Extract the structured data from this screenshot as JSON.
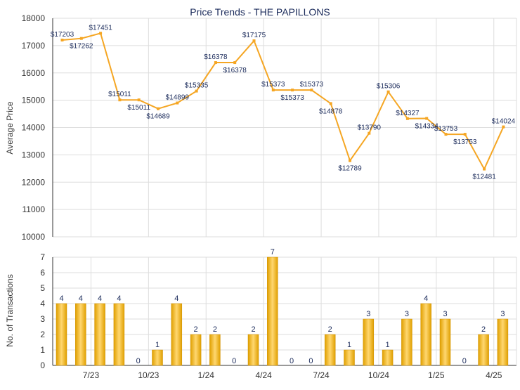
{
  "colors": {
    "line": "#f5a623",
    "bar_dark": "#e0a000",
    "bar_light": "#ffd770",
    "grid": "#dddddd",
    "axis": "#333333",
    "label": "#1a2a5a"
  },
  "chart_data": [
    {
      "type": "line",
      "title": "Price Trends - THE PAPILLONS",
      "ylabel": "Average Price",
      "ylim": [
        10000,
        18000
      ],
      "yticks": [
        "10000",
        "11000",
        "12000",
        "13000",
        "14000",
        "15000",
        "16000",
        "17000",
        "18000"
      ],
      "grid": true,
      "series": [
        {
          "values": [
            17203,
            17262,
            17451,
            15011,
            15011,
            14689,
            14899,
            15335,
            16378,
            16378,
            17175,
            15373,
            15373,
            15373,
            14878,
            12789,
            13790,
            15306,
            14327,
            14334,
            13753,
            13753,
            12481,
            14024
          ],
          "point_labels": [
            "$17203",
            "$17262",
            "$17451",
            "$15011",
            "$15011",
            "$14689",
            "$14899",
            "$15335",
            "$16378",
            "$16378",
            "$17175",
            "$15373",
            "$15373",
            "$15373",
            "$14878",
            "$12789",
            "$13790",
            "$15306",
            "$14327",
            "$14334",
            "$13753",
            "$13753",
            "$12481",
            "$14024"
          ]
        }
      ]
    },
    {
      "type": "bar",
      "ylabel": "No. of Transactions",
      "ylim": [
        0,
        7
      ],
      "yticks": [
        "0",
        "1",
        "2",
        "3",
        "4",
        "5",
        "6",
        "7"
      ],
      "grid": true,
      "values": [
        4,
        4,
        4,
        4,
        0,
        1,
        4,
        2,
        2,
        0,
        2,
        7,
        0,
        0,
        2,
        1,
        3,
        1,
        3,
        4,
        3,
        0,
        2,
        3
      ],
      "xtick_labels": [
        "7/23",
        "10/23",
        "1/24",
        "4/24",
        "7/24",
        "10/24",
        "1/25",
        "4/25"
      ]
    }
  ]
}
